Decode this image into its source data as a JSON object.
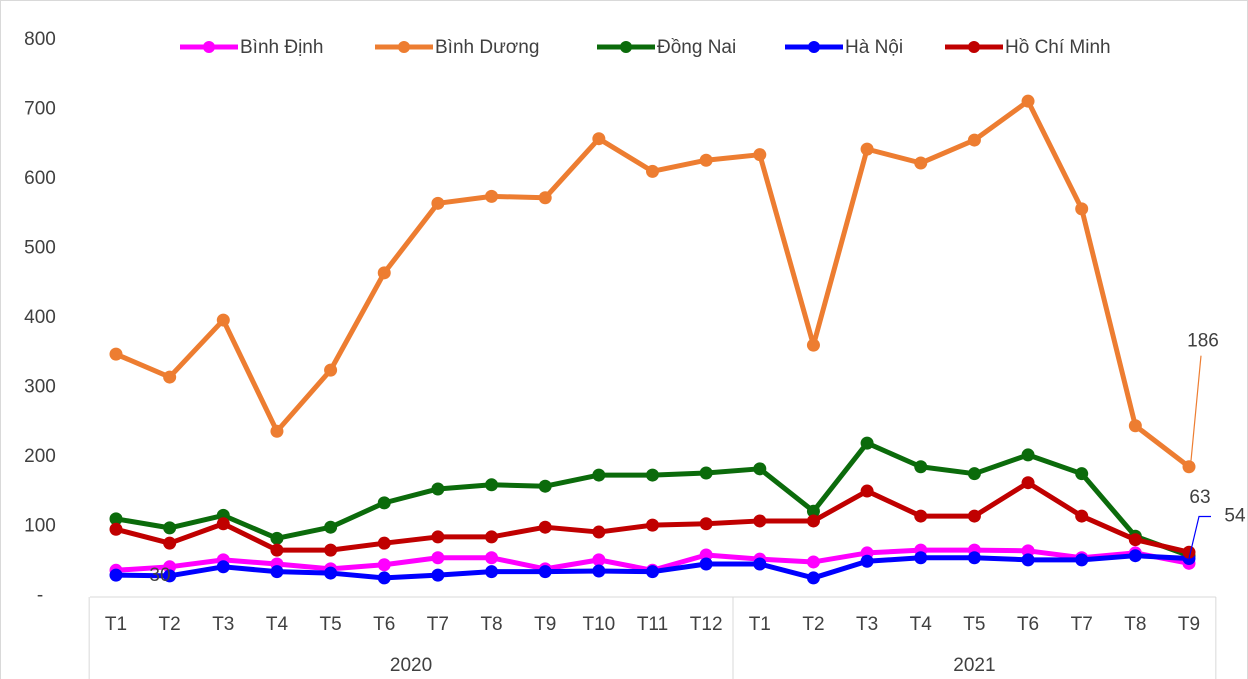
{
  "chart_data": {
    "type": "line",
    "groups": [
      {
        "label": "2020",
        "categories": [
          "T1",
          "T2",
          "T3",
          "T4",
          "T5",
          "T6",
          "T7",
          "T8",
          "T9",
          "T10",
          "T11",
          "T12"
        ]
      },
      {
        "label": "2021",
        "categories": [
          "T1",
          "T2",
          "T3",
          "T4",
          "T5",
          "T6",
          "T7",
          "T8",
          "T9"
        ]
      }
    ],
    "ylim": [
      0,
      800
    ],
    "yticks": [
      {
        "value": 0,
        "label": "-"
      },
      100,
      200,
      300,
      400,
      500,
      600,
      700,
      800
    ],
    "grid": false,
    "legend": "top",
    "series": [
      {
        "name": "Bình Định",
        "color": "#ff00ff",
        "values": [
          37,
          42,
          52,
          46,
          39,
          45,
          55,
          55,
          39,
          52,
          37,
          59,
          53,
          49,
          62,
          66,
          66,
          65,
          55,
          62,
          47
        ],
        "value_labels": [
          null,
          null,
          null,
          null,
          null,
          null,
          null,
          null,
          null,
          null,
          null,
          null,
          null,
          null,
          null,
          null,
          null,
          null,
          null,
          null,
          null
        ]
      },
      {
        "name": "Bình Dương",
        "color": "#ed7d31",
        "values": [
          348,
          315,
          397,
          237,
          325,
          465,
          565,
          575,
          573,
          658,
          611,
          627,
          635,
          361,
          643,
          623,
          656,
          712,
          557,
          245,
          186
        ],
        "value_labels": [
          null,
          null,
          null,
          null,
          null,
          null,
          null,
          null,
          null,
          null,
          null,
          null,
          null,
          null,
          null,
          null,
          null,
          null,
          null,
          null,
          "186"
        ]
      },
      {
        "name": "Đồng Nai",
        "color": "#0b6b0b",
        "values": [
          111,
          98,
          116,
          83,
          99,
          134,
          154,
          160,
          158,
          174,
          174,
          177,
          183,
          122,
          220,
          186,
          176,
          203,
          176,
          86,
          58
        ],
        "value_labels": [
          null,
          null,
          null,
          null,
          null,
          null,
          null,
          null,
          null,
          null,
          null,
          null,
          null,
          null,
          null,
          null,
          null,
          null,
          null,
          null,
          null
        ]
      },
      {
        "name": "Hà Nội",
        "color": "#0000ff",
        "values": [
          30,
          29,
          42,
          35,
          33,
          26,
          30,
          35,
          35,
          36,
          35,
          46,
          46,
          26,
          50,
          55,
          55,
          52,
          52,
          58,
          54
        ],
        "value_labels": [
          "30",
          null,
          null,
          null,
          null,
          null,
          null,
          null,
          null,
          null,
          null,
          null,
          null,
          null,
          null,
          null,
          null,
          null,
          null,
          null,
          "54"
        ]
      },
      {
        "name": "Hồ Chí Minh",
        "color": "#c00000",
        "values": [
          96,
          76,
          104,
          66,
          66,
          76,
          85,
          85,
          99,
          92,
          102,
          104,
          108,
          108,
          151,
          115,
          115,
          163,
          115,
          81,
          63
        ],
        "value_labels": [
          null,
          null,
          null,
          null,
          null,
          null,
          null,
          null,
          null,
          null,
          null,
          null,
          null,
          null,
          null,
          null,
          null,
          null,
          null,
          null,
          "63"
        ]
      }
    ]
  }
}
